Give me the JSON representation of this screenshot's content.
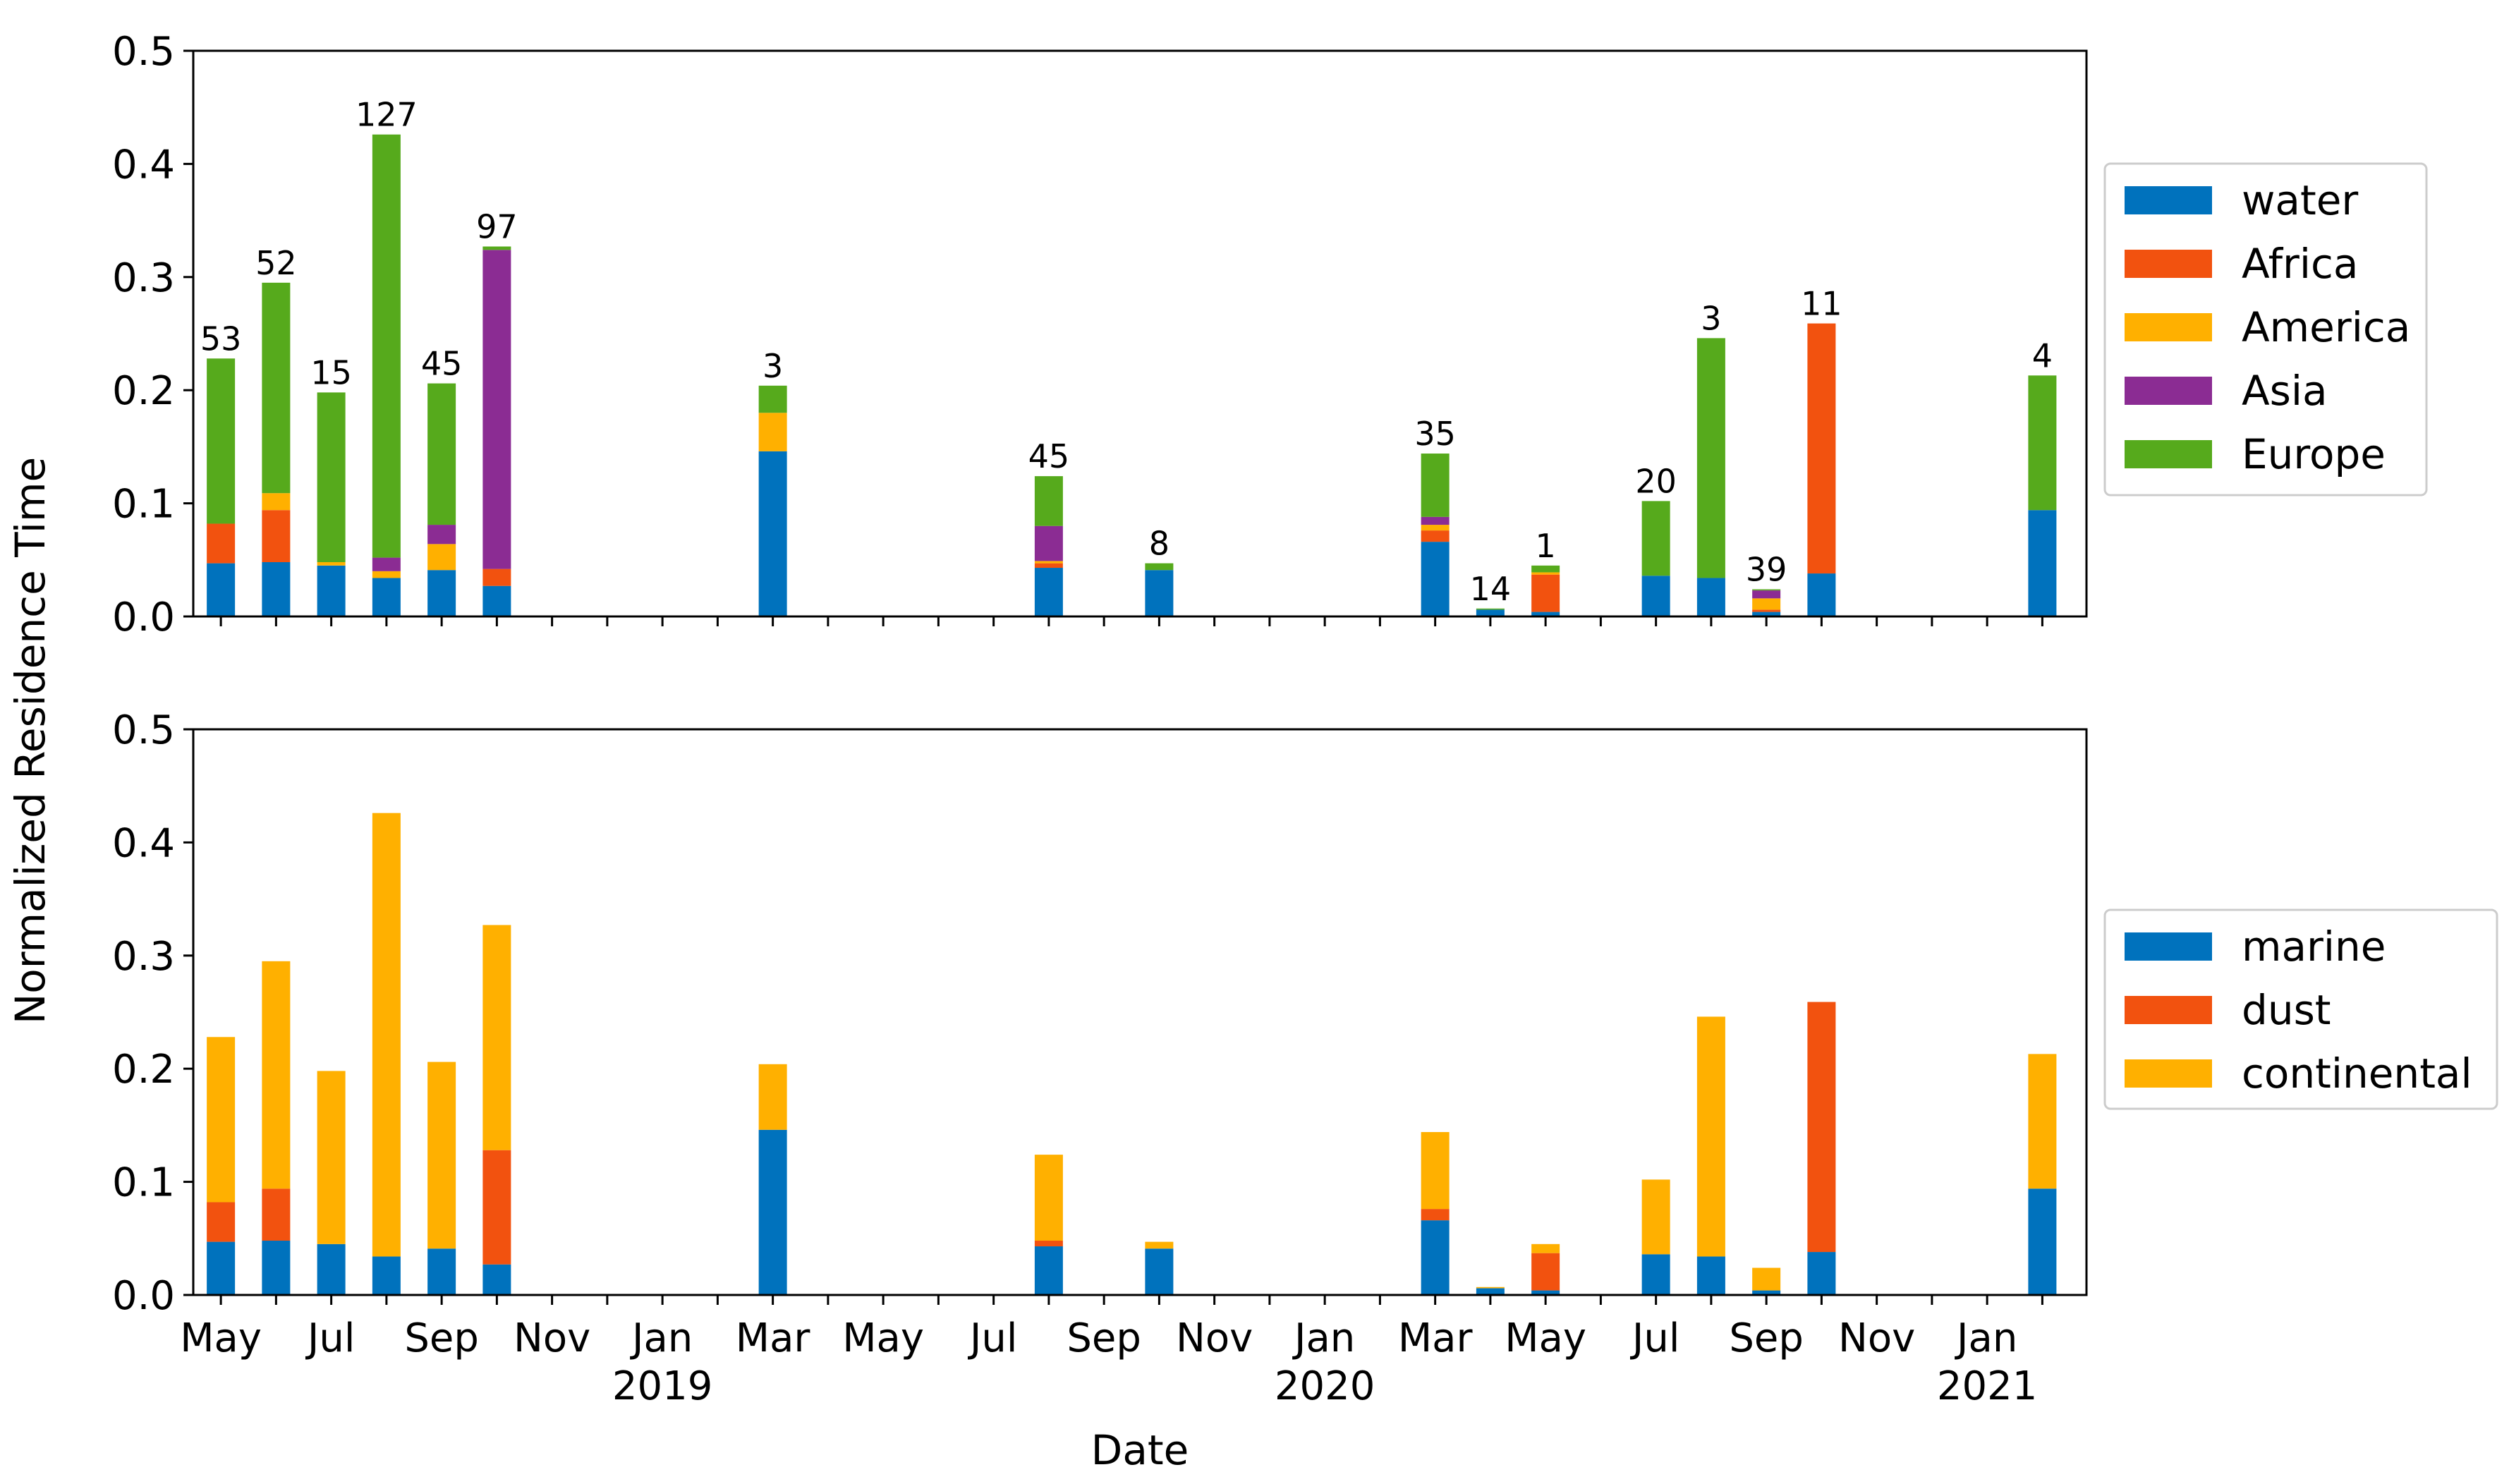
{
  "figure": {
    "ylabel": "Normalized Residence Time",
    "xlabel": "Date"
  },
  "colors": {
    "water": "#0072bd",
    "Africa": "#f2520f",
    "America": "#ffb000",
    "Asia": "#8b2c93",
    "Europe": "#56aa1c",
    "marine": "#0072bd",
    "dust": "#f2520f",
    "continental": "#ffb000"
  },
  "chart_data": [
    {
      "type": "bar",
      "stacked": true,
      "panel": "top",
      "title": "",
      "xlabel": "",
      "ylabel": "Normalized Residence Time",
      "ylim": [
        0,
        0.5
      ],
      "yticks": [
        "0.0",
        "0.1",
        "0.2",
        "0.3",
        "0.4",
        "0.5"
      ],
      "x_month_index_range": [
        -0.5,
        33.8
      ],
      "x_ticks": [
        {
          "month_index": 0,
          "label": "May"
        },
        {
          "month_index": 2,
          "label": "Jul"
        },
        {
          "month_index": 4,
          "label": "Sep"
        },
        {
          "month_index": 6,
          "label": "Nov"
        },
        {
          "month_index": 8,
          "label": "Jan",
          "year": "2019"
        },
        {
          "month_index": 10,
          "label": "Mar"
        },
        {
          "month_index": 12,
          "label": "May"
        },
        {
          "month_index": 14,
          "label": "Jul"
        },
        {
          "month_index": 16,
          "label": "Sep"
        },
        {
          "month_index": 18,
          "label": "Nov"
        },
        {
          "month_index": 20,
          "label": "Jan",
          "year": "2020"
        },
        {
          "month_index": 22,
          "label": "Mar"
        },
        {
          "month_index": 24,
          "label": "May"
        },
        {
          "month_index": 26,
          "label": "Jul"
        },
        {
          "month_index": 28,
          "label": "Sep"
        },
        {
          "month_index": 30,
          "label": "Nov"
        },
        {
          "month_index": 32,
          "label": "Jan",
          "year": "2021"
        }
      ],
      "legend": {
        "position": "right-upper",
        "entries": [
          "water",
          "Africa",
          "America",
          "Asia",
          "Europe"
        ]
      },
      "bars": [
        {
          "x": 0.0,
          "count": "53",
          "water": 0.047,
          "Africa": 0.035,
          "America": 0.0,
          "Asia": 0.0,
          "Europe": 0.146
        },
        {
          "x": 1.0,
          "count": "52",
          "water": 0.048,
          "Africa": 0.046,
          "America": 0.015,
          "Asia": 0.0,
          "Europe": 0.186
        },
        {
          "x": 2.0,
          "count": "15",
          "water": 0.045,
          "Africa": 0.0,
          "America": 0.003,
          "Asia": 0.0,
          "Europe": 0.15
        },
        {
          "x": 3.0,
          "count": "127",
          "water": 0.034,
          "Africa": 0.0,
          "America": 0.006,
          "Asia": 0.012,
          "Europe": 0.374
        },
        {
          "x": 4.0,
          "count": "45",
          "water": 0.041,
          "Africa": 0.0,
          "America": 0.023,
          "Asia": 0.017,
          "Europe": 0.125
        },
        {
          "x": 5.0,
          "count": "97",
          "water": 0.027,
          "Africa": 0.015,
          "America": 0.0,
          "Asia": 0.282,
          "Europe": 0.003
        },
        {
          "x": 10.0,
          "count": "3",
          "water": 0.146,
          "Africa": 0.0,
          "America": 0.034,
          "Asia": 0.0,
          "Europe": 0.024
        },
        {
          "x": 15.0,
          "count": "45",
          "water": 0.043,
          "Africa": 0.004,
          "America": 0.002,
          "Asia": 0.031,
          "Europe": 0.044
        },
        {
          "x": 17.0,
          "count": "8",
          "water": 0.041,
          "Africa": 0.0,
          "America": 0.0,
          "Asia": 0.0,
          "Europe": 0.006
        },
        {
          "x": 22.0,
          "count": "35",
          "water": 0.066,
          "Africa": 0.01,
          "America": 0.005,
          "Asia": 0.007,
          "Europe": 0.056
        },
        {
          "x": 23.0,
          "count": "14",
          "water": 0.006,
          "Africa": 0.0,
          "America": 0.0,
          "Asia": 0.0,
          "Europe": 0.001
        },
        {
          "x": 24.0,
          "count": "1",
          "water": 0.004,
          "Africa": 0.033,
          "America": 0.002,
          "Asia": 0.0,
          "Europe": 0.006
        },
        {
          "x": 26.0,
          "count": "20",
          "water": 0.036,
          "Africa": 0.0,
          "America": 0.0,
          "Asia": 0.0,
          "Europe": 0.066
        },
        {
          "x": 27.0,
          "count": "3",
          "water": 0.034,
          "Africa": 0.0,
          "America": 0.0,
          "Asia": 0.0,
          "Europe": 0.212
        },
        {
          "x": 28.0,
          "count": "39",
          "water": 0.004,
          "Africa": 0.002,
          "America": 0.01,
          "Asia": 0.007,
          "Europe": 0.001
        },
        {
          "x": 29.0,
          "count": "11",
          "water": 0.038,
          "Africa": 0.221,
          "America": 0.0,
          "Asia": 0.0,
          "Europe": 0.0
        },
        {
          "x": 33.0,
          "count": "4",
          "water": 0.094,
          "Africa": 0.0,
          "America": 0.0,
          "Asia": 0.0,
          "Europe": 0.119
        }
      ]
    },
    {
      "type": "bar",
      "stacked": true,
      "panel": "bottom",
      "title": "",
      "xlabel": "Date",
      "ylabel": "Normalized Residence Time",
      "ylim": [
        0,
        0.5
      ],
      "yticks": [
        "0.0",
        "0.1",
        "0.2",
        "0.3",
        "0.4",
        "0.5"
      ],
      "legend": {
        "position": "right-lower",
        "entries": [
          "marine",
          "dust",
          "continental"
        ]
      },
      "bars": [
        {
          "x": 0.0,
          "marine": 0.047,
          "dust": 0.035,
          "continental": 0.146
        },
        {
          "x": 1.0,
          "marine": 0.048,
          "dust": 0.046,
          "continental": 0.201
        },
        {
          "x": 2.0,
          "marine": 0.045,
          "dust": 0.0,
          "continental": 0.153
        },
        {
          "x": 3.0,
          "marine": 0.034,
          "dust": 0.0,
          "continental": 0.392
        },
        {
          "x": 4.0,
          "marine": 0.041,
          "dust": 0.0,
          "continental": 0.165
        },
        {
          "x": 5.0,
          "marine": 0.027,
          "dust": 0.101,
          "continental": 0.199
        },
        {
          "x": 10.0,
          "marine": 0.146,
          "dust": 0.0,
          "continental": 0.058
        },
        {
          "x": 15.0,
          "marine": 0.043,
          "dust": 0.005,
          "continental": 0.076
        },
        {
          "x": 17.0,
          "marine": 0.041,
          "dust": 0.0,
          "continental": 0.006
        },
        {
          "x": 22.0,
          "marine": 0.066,
          "dust": 0.01,
          "continental": 0.068
        },
        {
          "x": 23.0,
          "marine": 0.006,
          "dust": 0.0,
          "continental": 0.001
        },
        {
          "x": 24.0,
          "marine": 0.004,
          "dust": 0.033,
          "continental": 0.008
        },
        {
          "x": 26.0,
          "marine": 0.036,
          "dust": 0.0,
          "continental": 0.066
        },
        {
          "x": 27.0,
          "marine": 0.034,
          "dust": 0.0,
          "continental": 0.212
        },
        {
          "x": 28.0,
          "marine": 0.004,
          "dust": 0.0,
          "continental": 0.02
        },
        {
          "x": 29.0,
          "marine": 0.038,
          "dust": 0.221,
          "continental": 0.0
        },
        {
          "x": 33.0,
          "marine": 0.094,
          "dust": 0.0,
          "continental": 0.119
        }
      ]
    }
  ]
}
